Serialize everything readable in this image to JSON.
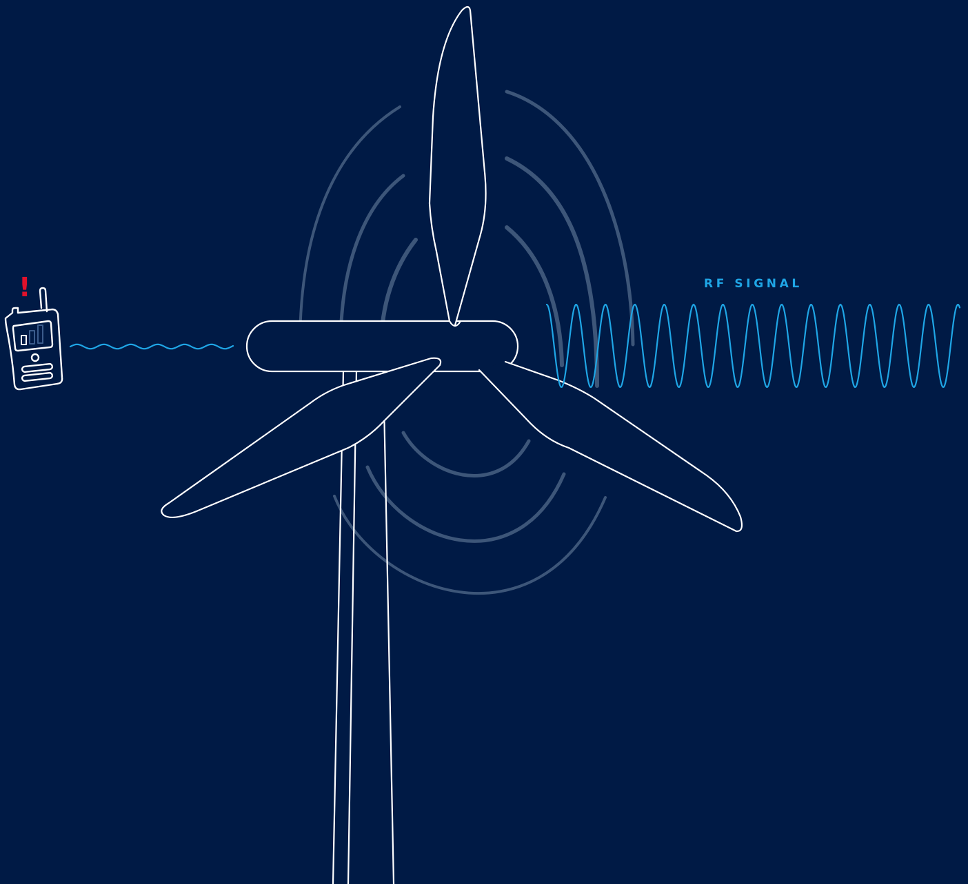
{
  "diagram": {
    "rf_label": "RF SIGNAL",
    "alert_symbol": "!"
  },
  "icons": {
    "radio": "handheld-radio-icon",
    "turbine": "wind-turbine-icon"
  },
  "colors": {
    "background": "#001a45",
    "outline": "#ffffff",
    "signal": "#1fa6e6",
    "alert": "#e0112b",
    "interference": "#3d5679",
    "radio_bars": "#3b5c8c"
  }
}
